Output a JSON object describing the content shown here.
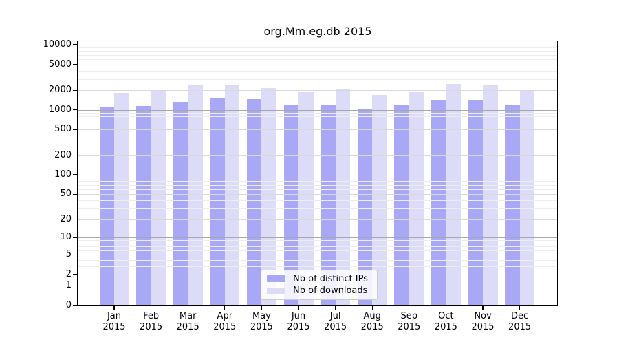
{
  "title": "org.Mm.eg.db 2015",
  "chart_data": {
    "type": "bar",
    "title": "org.Mm.eg.db 2015",
    "categories": [
      "Jan",
      "Feb",
      "Mar",
      "Apr",
      "May",
      "Jun",
      "Jul",
      "Aug",
      "Sep",
      "Oct",
      "Nov",
      "Dec"
    ],
    "x_year_label": "2015",
    "series": [
      {
        "name": "Nb of distinct IPs",
        "color": "#a8a8f6",
        "values": [
          1130,
          1160,
          1330,
          1550,
          1450,
          1210,
          1220,
          1010,
          1200,
          1430,
          1430,
          1170
        ]
      },
      {
        "name": "Nb of downloads",
        "color": "#dcdcf9",
        "values": [
          1840,
          2030,
          2380,
          2460,
          2150,
          1900,
          2100,
          1700,
          1920,
          2520,
          2380,
          1980
        ]
      }
    ],
    "xlabel": "",
    "ylabel": "",
    "yscale": "log1p",
    "ylim": [
      0,
      11300
    ],
    "y_ticks": [
      10000,
      5000,
      2000,
      1000,
      500,
      200,
      100,
      50,
      20,
      10,
      5,
      2,
      1,
      0
    ],
    "grid": "horizontal",
    "grid_colors": {
      "major": "#a8a8a8",
      "mid": "#d9d9d9",
      "minor": "#ededed"
    },
    "legend_position": "bottom-center"
  }
}
